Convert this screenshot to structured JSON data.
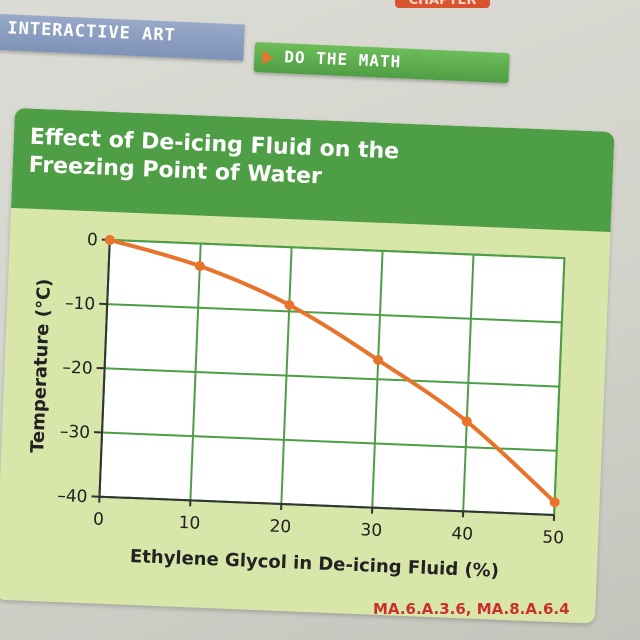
{
  "header": {
    "chapter_label": "CHAPTER",
    "section_label": "INTERACTIVE ART",
    "subsection_label": "DO THE MATH"
  },
  "colors": {
    "panel_header": "#4e9e46",
    "panel_body": "#d9e6a9",
    "line": "#e8742c",
    "standards": "#cc2e2e"
  },
  "chart_data": {
    "type": "line",
    "title_lines": [
      "Effect of De-icing Fluid on the",
      "Freezing Point of Water"
    ],
    "xlabel": "Ethylene Glycol in De-icing Fluid (%)",
    "ylabel": "Temperature (°C)",
    "x_ticks": [
      0,
      10,
      20,
      30,
      40,
      50
    ],
    "y_ticks": [
      0,
      -10,
      -20,
      -30,
      -40
    ],
    "x_tick_labels": [
      "0",
      "10",
      "20",
      "30",
      "40",
      "50"
    ],
    "y_tick_labels": [
      "0",
      "–10",
      "–20",
      "–30",
      "–40"
    ],
    "xlim": [
      0,
      50
    ],
    "ylim": [
      -40,
      0
    ],
    "grid": true,
    "series": [
      {
        "x": [
          0,
          10,
          20,
          30,
          40,
          50
        ],
        "y": [
          0,
          -3.5,
          -9,
          -17,
          -26,
          -38
        ]
      }
    ]
  },
  "footer": {
    "standards": "MA.6.A.3.6, MA.8.A.6.4"
  }
}
